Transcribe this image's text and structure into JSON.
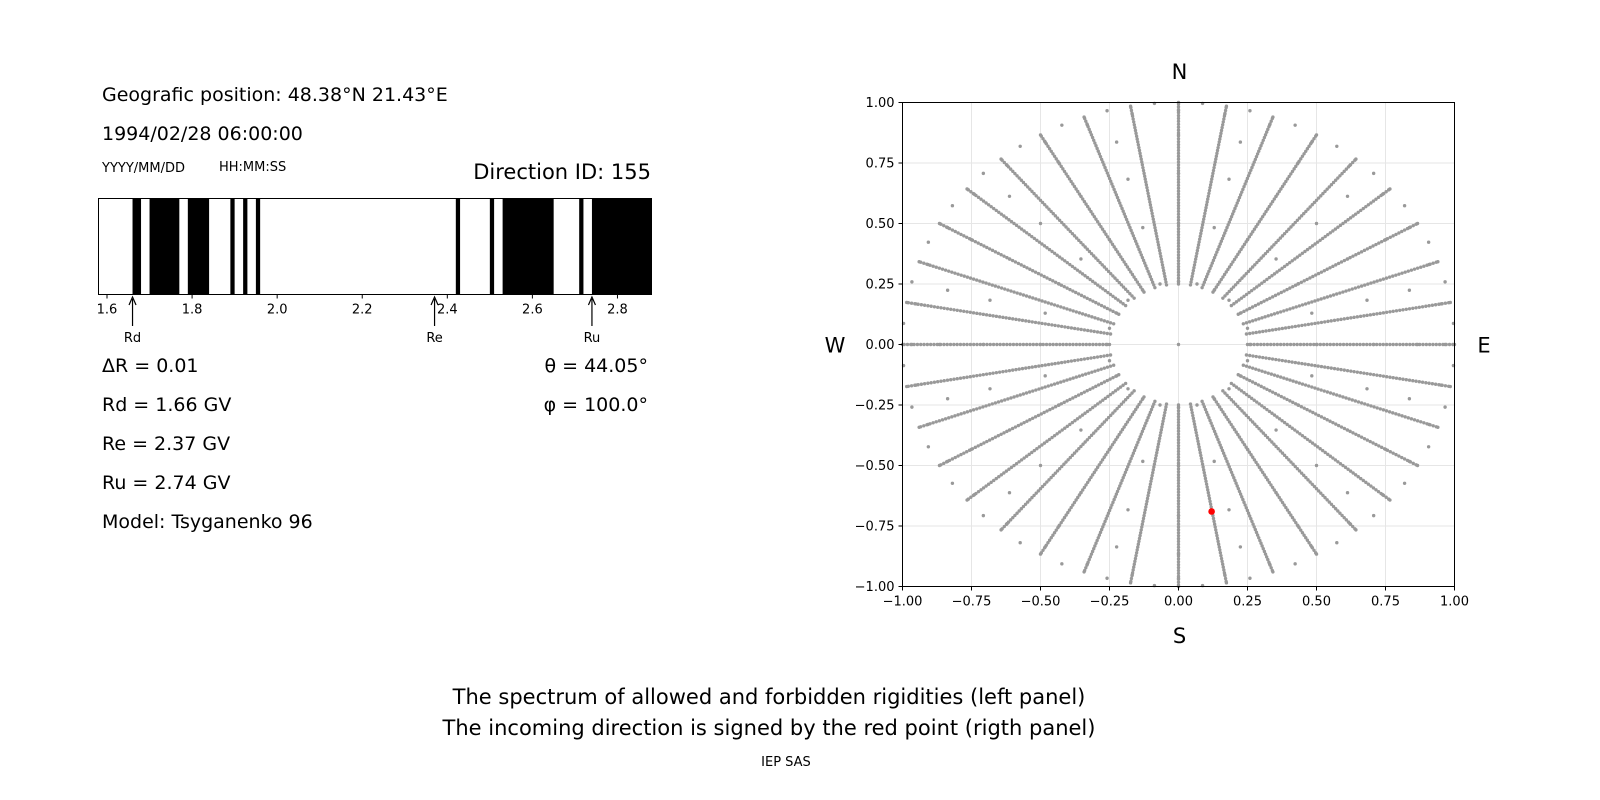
{
  "info": {
    "position_label": "Geografic position: 48.38°N 21.43°E",
    "datetime": "1994/02/28 06:00:00",
    "date_format": "YYYY/MM/DD",
    "time_format": "HH:MM:SS",
    "direction_id": "Direction ID: 155",
    "delta_r": "ΔR = 0.01",
    "theta": "θ = 44.05°",
    "phi": "φ = 100.0°",
    "rd": "Rd = 1.66 GV",
    "re": "Re = 2.37 GV",
    "ru": "Ru = 2.74 GV",
    "model": "Model: Tsyganenko 96"
  },
  "captions": {
    "line1": "The spectrum of allowed and forbidden rigidities (left panel)",
    "line2": "The incoming direction is signed by the red point (rigth panel)",
    "footer": "IEP SAS"
  },
  "chart_data": [
    {
      "type": "bar",
      "subtype": "rigidity-spectrum",
      "xlim": [
        1.58,
        2.88
      ],
      "xticks": [
        1.6,
        1.8,
        2.0,
        2.2,
        2.4,
        2.6,
        2.8
      ],
      "xtick_labels": [
        "1.6",
        "1.8",
        "2.0",
        "2.2",
        "2.4",
        "2.6",
        "2.8"
      ],
      "forbidden_bands": [
        [
          1.66,
          1.68
        ],
        [
          1.7,
          1.77
        ],
        [
          1.79,
          1.84
        ],
        [
          1.89,
          1.9
        ],
        [
          1.92,
          1.93
        ],
        [
          1.95,
          1.96
        ],
        [
          2.42,
          2.43
        ],
        [
          2.5,
          2.51
        ],
        [
          2.53,
          2.65
        ],
        [
          2.71,
          2.72
        ],
        [
          2.74,
          2.88
        ]
      ],
      "markers": [
        {
          "label": "Rd",
          "value": 1.66
        },
        {
          "label": "Re",
          "value": 2.37
        },
        {
          "label": "Ru",
          "value": 2.74
        }
      ],
      "colors": {
        "forbidden": "#000000",
        "allowed": "#ffffff"
      }
    },
    {
      "type": "scatter",
      "subtype": "asymptotic-directions",
      "xlim": [
        -1.0,
        1.0
      ],
      "ylim": [
        -1.0,
        1.0
      ],
      "xticks": [
        -1.0,
        -0.75,
        -0.5,
        -0.25,
        0.0,
        0.25,
        0.5,
        0.75,
        1.0
      ],
      "yticks": [
        -1.0,
        -0.75,
        -0.5,
        -0.25,
        0.0,
        0.25,
        0.5,
        0.75,
        1.0
      ],
      "xtick_labels": [
        "−1.00",
        "−0.75",
        "−0.50",
        "−0.25",
        "0.00",
        "0.25",
        "0.50",
        "0.75",
        "1.00"
      ],
      "ytick_labels": [
        "−1.00",
        "−0.75",
        "−0.50",
        "−0.25",
        "0.00",
        "0.25",
        "0.50",
        "0.75",
        "1.00"
      ],
      "compass": {
        "N": "N",
        "S": "S",
        "E": "E",
        "W": "W"
      },
      "grid": true,
      "directions": {
        "center_point": [
          0.0,
          0.0
        ],
        "theta_rings_deg": [
          15,
          30,
          45,
          60,
          75,
          90
        ],
        "ring_point_spacing_deg": [
          15,
          15,
          15,
          15,
          10,
          5
        ],
        "azimuth_step_deg": 10,
        "radial_spoke_start": 0.25,
        "radial_spoke_step": 0.012
      },
      "highlight": {
        "x": 0.12,
        "y": -0.69,
        "color": "#ff0000"
      },
      "point_color": "#999999"
    }
  ]
}
